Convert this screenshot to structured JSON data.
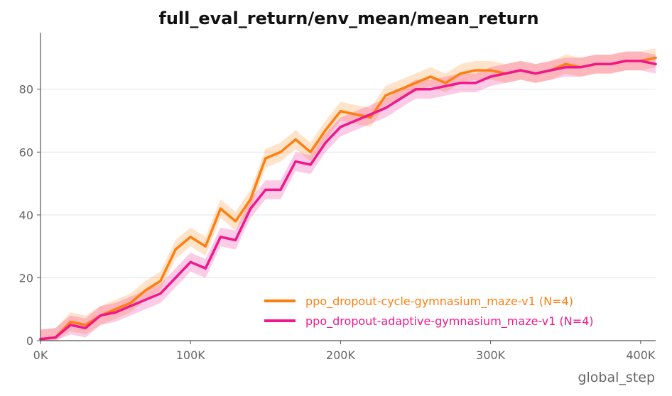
{
  "chart_data": {
    "type": "line",
    "title": "full_eval_return/env_mean/mean_return",
    "xlabel": "global_step",
    "ylabel": "",
    "xlim": [
      0,
      410000
    ],
    "ylim": [
      0,
      98
    ],
    "x_ticks": [
      0,
      100000,
      200000,
      300000,
      400000
    ],
    "x_tick_labels": [
      "0K",
      "100K",
      "200K",
      "300K",
      "400K"
    ],
    "y_ticks": [
      0,
      20,
      40,
      60,
      80
    ],
    "y_tick_labels": [
      "0",
      "20",
      "40",
      "60",
      "80"
    ],
    "grid": "horizontal",
    "legend_position": "bottom-right",
    "x": [
      0,
      10000,
      20000,
      30000,
      40000,
      50000,
      60000,
      70000,
      80000,
      90000,
      100000,
      110000,
      120000,
      130000,
      140000,
      150000,
      160000,
      170000,
      180000,
      190000,
      200000,
      210000,
      220000,
      230000,
      240000,
      250000,
      260000,
      270000,
      280000,
      290000,
      300000,
      310000,
      320000,
      330000,
      340000,
      350000,
      360000,
      370000,
      380000,
      390000,
      400000,
      410000
    ],
    "series": [
      {
        "name": "ppo_dropout-cycle-gymnasium_maze-v1 (N=4)",
        "color": "#ff7f0e",
        "values": [
          0.5,
          1,
          6,
          5,
          8,
          10,
          12,
          16,
          19,
          29,
          33,
          30,
          42,
          38,
          45,
          58,
          60,
          64,
          60,
          67,
          73,
          72,
          71,
          78,
          80,
          82,
          84,
          82,
          85,
          86,
          86,
          85,
          86,
          85,
          86,
          88,
          87,
          88,
          88,
          89,
          89,
          90
        ],
        "band": 3
      },
      {
        "name": "ppo_dropout-adaptive-gymnasium_maze-v1 (N=4)",
        "color": "#f0178c",
        "values": [
          0.5,
          1,
          5,
          4,
          8,
          9,
          11,
          13,
          15,
          20,
          25,
          23,
          33,
          32,
          42,
          48,
          48,
          57,
          56,
          63,
          68,
          70,
          72,
          74,
          77,
          80,
          80,
          81,
          82,
          82,
          84,
          85,
          86,
          85,
          86,
          87,
          87,
          88,
          88,
          89,
          89,
          88
        ],
        "band": 3
      }
    ]
  }
}
